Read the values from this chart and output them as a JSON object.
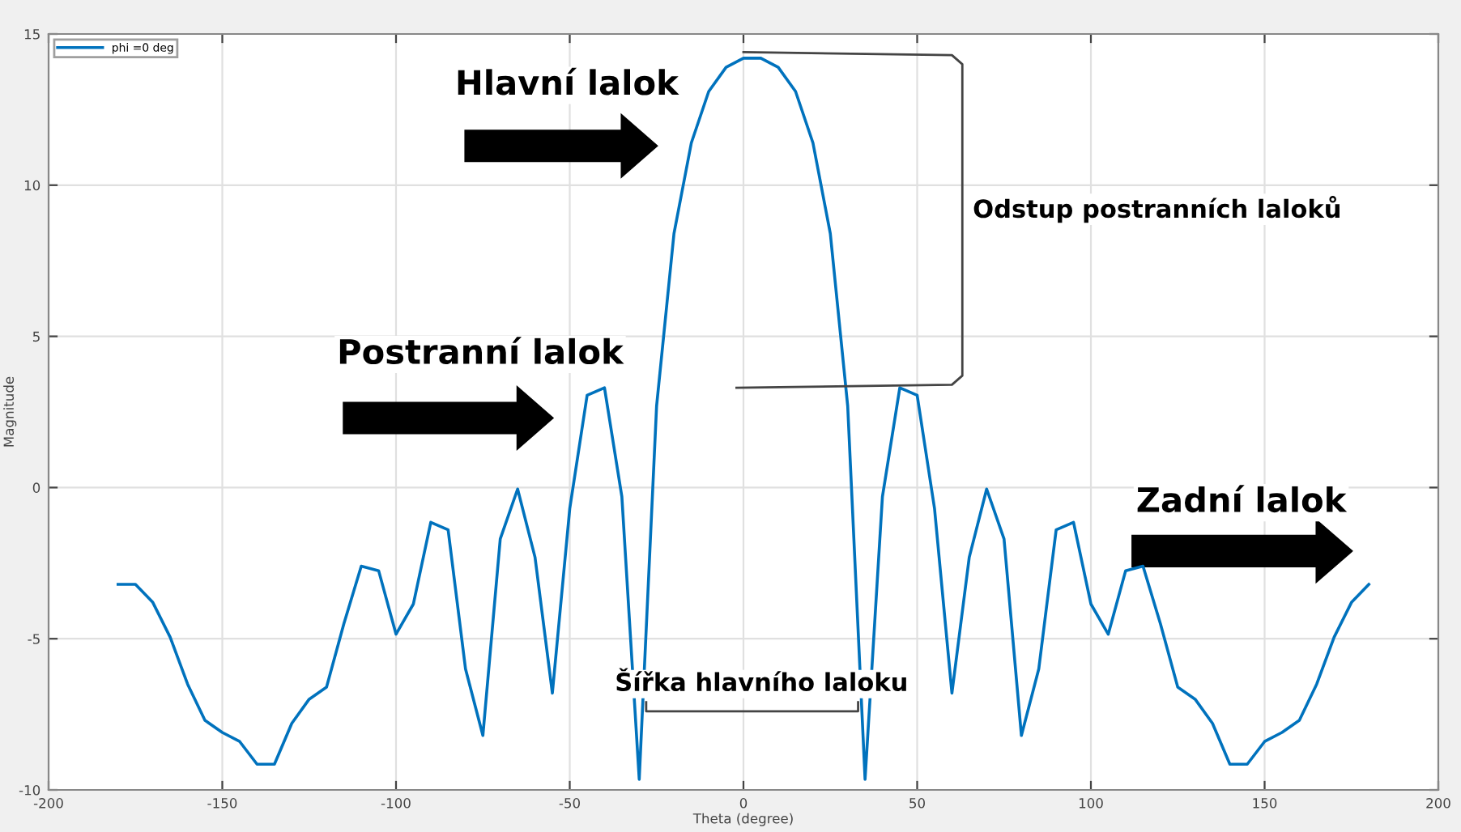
{
  "chart_data": {
    "type": "line",
    "xlabel": "Theta (degree)",
    "ylabel": "Magnitude",
    "x": [
      -180,
      -175,
      -170,
      -165,
      -160,
      -155,
      -150,
      -145,
      -140,
      -135,
      -130,
      -125,
      -120,
      -115,
      -110,
      -105,
      -100,
      -95,
      -90,
      -85,
      -80,
      -75,
      -70,
      -65,
      -60,
      -55,
      -50,
      -45,
      -40,
      -35,
      -30,
      -25,
      -20,
      -15,
      -10,
      -5,
      0,
      5,
      10,
      15,
      20,
      25,
      30,
      35,
      40,
      45,
      50,
      55,
      60,
      65,
      70,
      75,
      80,
      85,
      90,
      95,
      100,
      105,
      110,
      115,
      120,
      125,
      130,
      135,
      140,
      145,
      150,
      155,
      160,
      165,
      170,
      175,
      180
    ],
    "series": [
      {
        "name": "phi =0 deg",
        "color": "#0072bd",
        "values": [
          -3.2,
          -3.2,
          -3.8,
          -4.95,
          -6.5,
          -7.7,
          -8.1,
          -8.4,
          -9.15,
          -9.15,
          -7.8,
          -7.0,
          -6.6,
          -4.5,
          -2.6,
          -2.75,
          -4.85,
          -3.85,
          -1.15,
          -1.4,
          -6.0,
          -8.2,
          -1.7,
          -0.05,
          -2.3,
          -6.8,
          -0.7,
          3.05,
          3.3,
          -0.3,
          -9.65,
          2.7,
          8.4,
          11.4,
          13.1,
          13.9,
          14.2,
          14.2,
          13.9,
          13.1,
          11.4,
          8.4,
          2.7,
          -9.65,
          -0.3,
          3.3,
          3.05,
          -0.7,
          -6.8,
          -2.3,
          -0.05,
          -1.7,
          -8.2,
          -6.0,
          -1.4,
          -1.15,
          -3.85,
          -4.85,
          -2.75,
          -2.6,
          -4.5,
          -6.6,
          -7.0,
          -7.8,
          -9.15,
          -9.15,
          -8.4,
          -8.1,
          -7.7,
          -6.5,
          -4.95,
          -3.8,
          -3.2
        ]
      }
    ],
    "xlim": [
      -200,
      200
    ],
    "ylim": [
      -10,
      15
    ],
    "xticks": [
      -200,
      -150,
      -100,
      -50,
      0,
      50,
      100,
      150,
      200
    ],
    "yticks": [
      -10,
      -5,
      0,
      5,
      10,
      15
    ],
    "grid": true,
    "legend": "top left",
    "line_style": "solid",
    "marker": "none",
    "annotations": [
      "Hlavní lalok",
      "Postranní lalok",
      "Zadní lalok",
      "Odstup postranních laloků",
      "Šířka hlavního laloku"
    ]
  }
}
